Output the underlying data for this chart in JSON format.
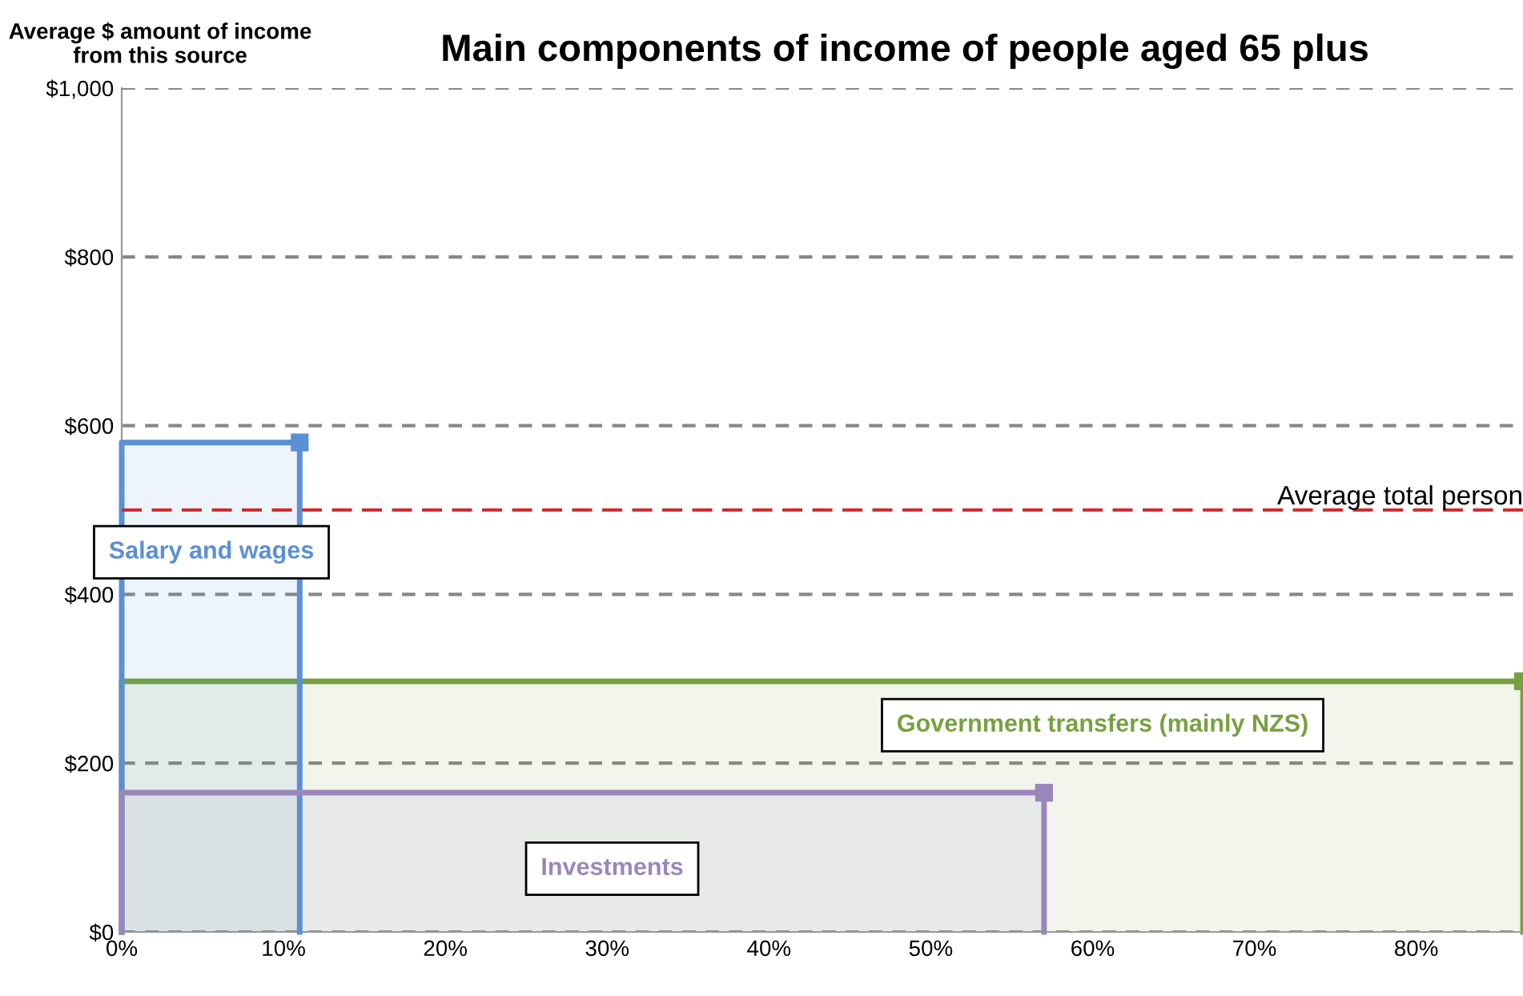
{
  "chart_data": {
    "type": "area",
    "title": "Main components of income of people aged 65 plus",
    "ylabel": "Average $ amount of income from this source",
    "series": [
      {
        "name": "Government transfers (mainly NZS)",
        "color": "#77a040",
        "x": [
          0,
          86.6
        ],
        "values": [
          297,
          297
        ]
      },
      {
        "name": "Salary and wages",
        "color": "#5b8fd6",
        "x": [
          0,
          11
        ],
        "values": [
          580,
          580
        ]
      },
      {
        "name": "Investments",
        "color": "#9b86bb",
        "x": [
          0,
          57
        ],
        "values": [
          165,
          165
        ]
      }
    ],
    "marker": "square",
    "xlim": [
      0,
      86.6
    ],
    "xticks": [
      {
        "value": 0,
        "label": "0%"
      },
      {
        "value": 10,
        "label": "10%"
      },
      {
        "value": 20,
        "label": "20%"
      },
      {
        "value": 30,
        "label": "30%"
      },
      {
        "value": 40,
        "label": "40%"
      },
      {
        "value": 50,
        "label": "50%"
      },
      {
        "value": 60,
        "label": "60%"
      },
      {
        "value": 70,
        "label": "70%"
      },
      {
        "value": 80,
        "label": "80%"
      }
    ],
    "ylim": [
      0,
      1000
    ],
    "yticks": [
      {
        "value": 0,
        "label": "$0"
      },
      {
        "value": 200,
        "label": "$200"
      },
      {
        "value": 400,
        "label": "$400"
      },
      {
        "value": 600,
        "label": "$600"
      },
      {
        "value": 800,
        "label": "$800"
      },
      {
        "value": 1000,
        "label": "$1,000"
      }
    ],
    "grid": "y",
    "ref_lines": [
      {
        "axis": "y",
        "value": 500,
        "label": "Average total person",
        "color": "#d42a2a",
        "line_style": "dashed"
      }
    ]
  }
}
